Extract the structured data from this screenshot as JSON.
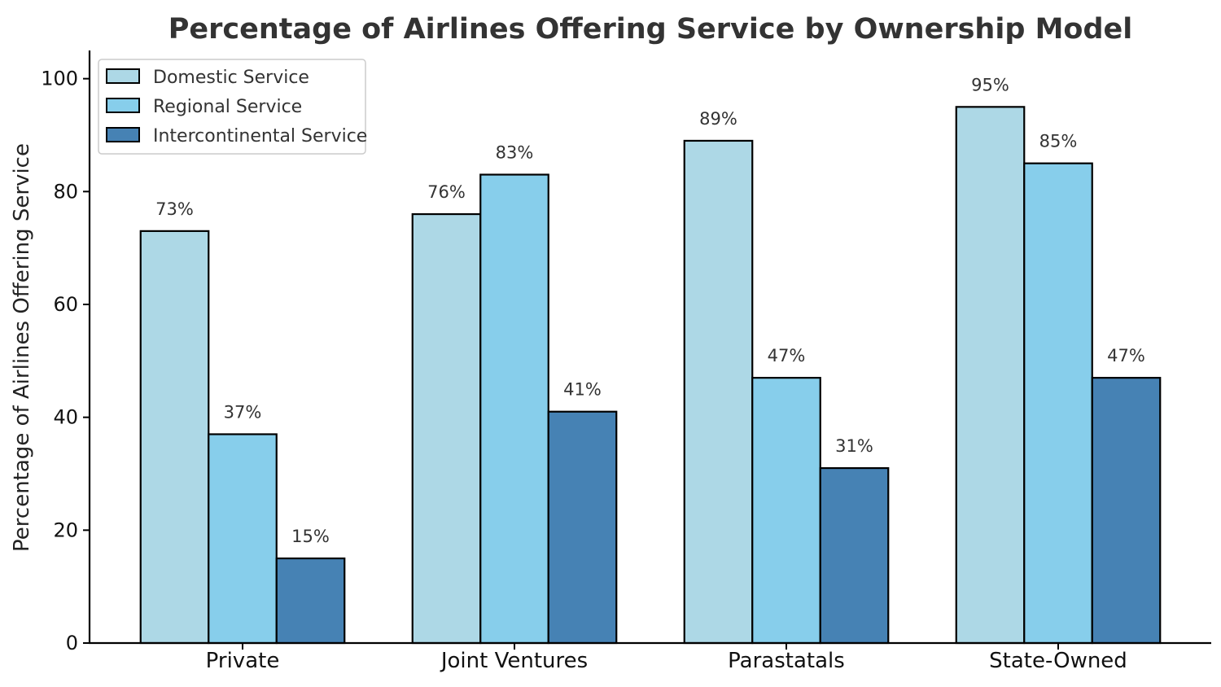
{
  "chart_data": {
    "type": "bar",
    "title": "Percentage of Airlines Offering Service by Ownership Model",
    "xlabel": "",
    "ylabel": "Percentage of Airlines Offering Service",
    "categories": [
      "Private",
      "Joint Ventures",
      "Parastatals",
      "State-Owned"
    ],
    "series": [
      {
        "name": "Domestic Service",
        "values": [
          73,
          76,
          89,
          95
        ],
        "color": "#add8e6"
      },
      {
        "name": "Regional Service",
        "values": [
          37,
          83,
          47,
          85
        ],
        "color": "#87ceeb"
      },
      {
        "name": "Intercontinental Service",
        "values": [
          15,
          41,
          31,
          47
        ],
        "color": "#4682b4"
      }
    ],
    "value_labels": [
      [
        "73%",
        "76%",
        "89%",
        "95%"
      ],
      [
        "37%",
        "83%",
        "47%",
        "85%"
      ],
      [
        "15%",
        "41%",
        "31%",
        "47%"
      ]
    ],
    "ylim": [
      0,
      105
    ],
    "yticks": [
      0,
      20,
      40,
      60,
      80,
      100
    ],
    "grid": false,
    "legend_position": "top-left",
    "bar_edge_color": "#000000"
  }
}
